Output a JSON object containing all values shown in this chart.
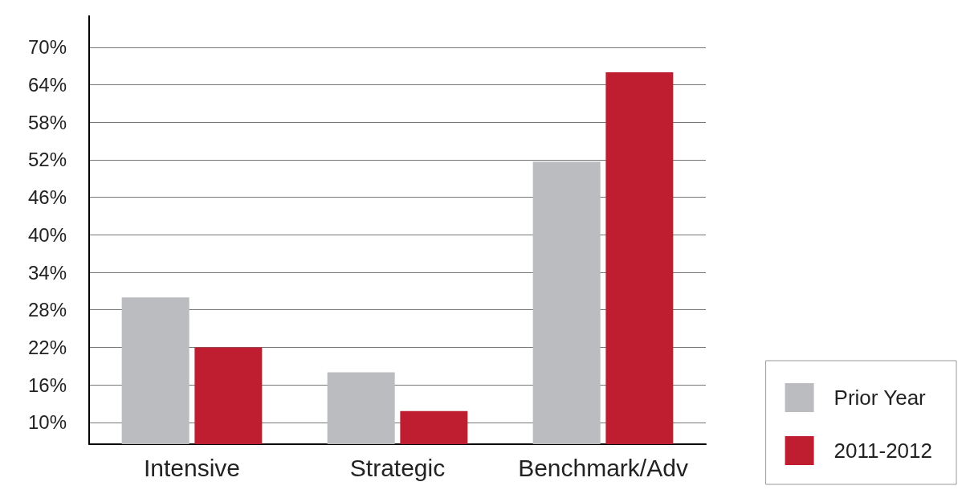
{
  "chart_data": {
    "type": "bar",
    "categories": [
      "Intensive",
      "Strategic",
      "Benchmark/Adv"
    ],
    "series": [
      {
        "name": "Prior Year",
        "color": "#bbbcc0",
        "values": [
          30,
          18,
          51.7
        ]
      },
      {
        "name": "2011-2012",
        "color": "#be1e2f",
        "values": [
          22,
          11.8,
          66
        ]
      }
    ],
    "ylim": [
      6.5,
      75
    ],
    "yticks": [
      {
        "value": 10,
        "label": "10%"
      },
      {
        "value": 16,
        "label": "16%"
      },
      {
        "value": 22,
        "label": "22%"
      },
      {
        "value": 28,
        "label": "28%"
      },
      {
        "value": 34,
        "label": "34%"
      },
      {
        "value": 40,
        "label": "40%"
      },
      {
        "value": 46,
        "label": "46%"
      },
      {
        "value": 52,
        "label": "52%"
      },
      {
        "value": 58,
        "label": "58%"
      },
      {
        "value": 64,
        "label": "64%"
      },
      {
        "value": 70,
        "label": "70%"
      }
    ],
    "grid": "y",
    "legend": "bottom right"
  }
}
